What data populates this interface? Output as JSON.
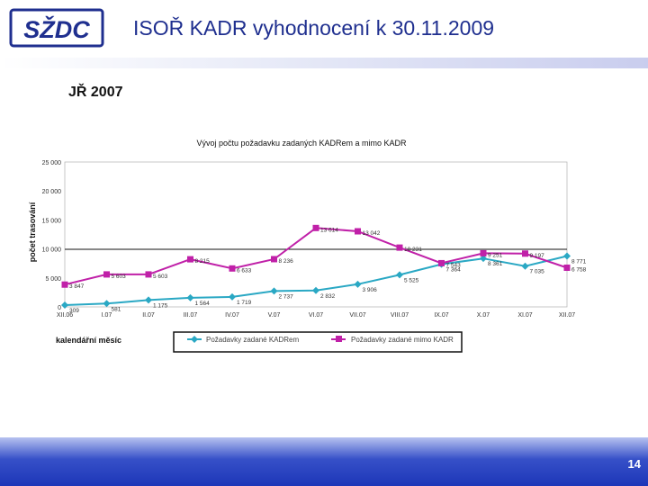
{
  "header": {
    "logo_text": "SŽDC",
    "title": "ISOŘ KADR vyhodnocení k 30.11.2009"
  },
  "subtitle": "JŘ 2007",
  "footer": {
    "page_number": "14"
  },
  "colors": {
    "title": "#1f2f8f",
    "series1": "#2aa8c4",
    "series2": "#c020a8",
    "footer": "#2840c0"
  },
  "chart_data": {
    "type": "line",
    "title": "Vývoj počtu požadavku zadaných KADRem a mimo KADR",
    "xlabel": "kalendářní měsíc",
    "ylabel": "počet trasování",
    "ylim": [
      0,
      20000
    ],
    "y_ticks": [
      "0",
      "5 000",
      "10 000",
      "15 000",
      "20 000",
      "25 000"
    ],
    "categories": [
      "XII.06",
      "I.07",
      "II.07",
      "III.07",
      "IV.07",
      "V.07",
      "VI.07",
      "VII.07",
      "VIII.07",
      "IX.07",
      "X.07",
      "XI.07",
      "XII.07"
    ],
    "series": [
      {
        "name": "Požadavky zadané KADRem",
        "values": [
          309,
          581,
          1175,
          1564,
          1719,
          2737,
          2832,
          3906,
          5525,
          7364,
          8361,
          7035,
          8771
        ],
        "labels": [
          "309",
          "581",
          "1 175",
          "1 564",
          "1 719",
          "2 737",
          "2 832",
          "3 906",
          "5 525",
          "7 364",
          "8 361",
          "7 035",
          "8 771"
        ]
      },
      {
        "name": "Požadavky zadané mimo KADR",
        "values": [
          3847,
          5603,
          5603,
          8215,
          6633,
          8236,
          13614,
          13042,
          10231,
          7543,
          9251,
          9197,
          6758
        ],
        "labels": [
          "3 847",
          "5 603",
          "5 603",
          "8 215",
          "6 633",
          "8 236",
          "13 614",
          "13 042",
          "10 231",
          "7 543",
          "9 251",
          "9 197",
          "6 758"
        ]
      }
    ],
    "legend": "bottom",
    "grid": false
  }
}
